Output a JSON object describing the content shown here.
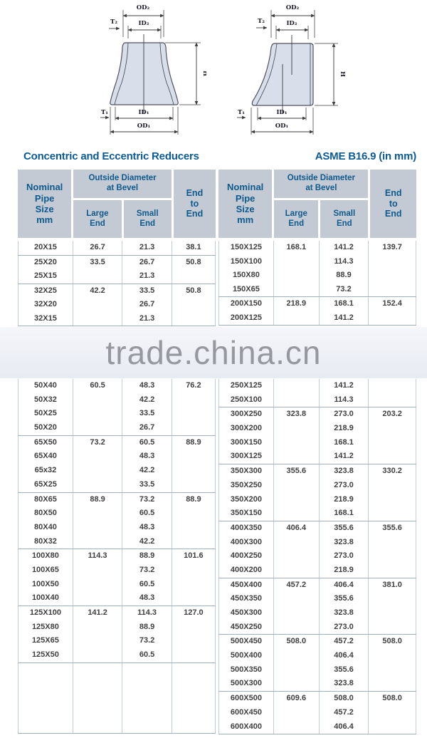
{
  "title": "Concentric and Eccentric Reducers",
  "standard": "ASME B16.9 (in mm)",
  "watermark": "trade.china.cn",
  "colors": {
    "accent_blue": "#0d5b94",
    "header_bg": "#c4cad3",
    "table_border": "#c3cdda",
    "diagram_fill": "#d8dfeb",
    "watermark_text": "#95989e"
  },
  "diagrams": {
    "labels": {
      "od2": "OD₂",
      "id2": "ID₂",
      "t2": "T₂",
      "h": "H",
      "t1": "T₁",
      "id1": "ID₁",
      "od1": "OD₁"
    }
  },
  "header": {
    "nominal": [
      "Nominal",
      "Pipe",
      "Size",
      "mm"
    ],
    "od_bevel": [
      "Outside Diameter",
      "at Bevel"
    ],
    "large": [
      "Large",
      "End"
    ],
    "small": [
      "Small",
      "End"
    ],
    "e2e": [
      "End",
      "to",
      "End"
    ]
  },
  "left_table": {
    "section1": [
      [
        [
          "20X15",
          "26.7",
          "21.3",
          "38.1"
        ]
      ],
      [
        [
          "25X20",
          "33.5",
          "26.7",
          "50.8"
        ],
        [
          "25X15",
          "",
          "21.3",
          ""
        ]
      ],
      [
        [
          "32X25",
          "42.2",
          "33.5",
          "50.8"
        ],
        [
          "32X20",
          "",
          "26.7",
          ""
        ],
        [
          "32X15",
          "",
          "21.3",
          ""
        ]
      ]
    ],
    "section2": [
      [
        [
          "50X40",
          "60.5",
          "48.3",
          "76.2"
        ],
        [
          "50X32",
          "",
          "42.2",
          ""
        ],
        [
          "50X25",
          "",
          "33.5",
          ""
        ],
        [
          "50X20",
          "",
          "26.7",
          ""
        ]
      ],
      [
        [
          "65X50",
          "73.2",
          "60.5",
          "88.9"
        ],
        [
          "65X40",
          "",
          "48.3",
          ""
        ],
        [
          "65x32",
          "",
          "42.2",
          ""
        ],
        [
          "65X25",
          "",
          "33.5",
          ""
        ]
      ],
      [
        [
          "80X65",
          "88.9",
          "73.2",
          "88.9"
        ],
        [
          "80X50",
          "",
          "60.5",
          ""
        ],
        [
          "80X40",
          "",
          "48.3",
          ""
        ],
        [
          "80X32",
          "",
          "42.2",
          ""
        ]
      ],
      [
        [
          "100X80",
          "114.3",
          "88.9",
          "101.6"
        ],
        [
          "100X65",
          "",
          "73.2",
          ""
        ],
        [
          "100X50",
          "",
          "60.5",
          ""
        ],
        [
          "100X40",
          "",
          "48.3",
          ""
        ]
      ],
      [
        [
          "125X100",
          "141.2",
          "114.3",
          "127.0"
        ],
        [
          "125X80",
          "",
          "88.9",
          ""
        ],
        [
          "125X65",
          "",
          "73.2",
          ""
        ],
        [
          "125X50",
          "",
          "60.5",
          ""
        ]
      ],
      [
        [
          "",
          "",
          "",
          ""
        ],
        [
          "",
          "",
          "",
          ""
        ],
        [
          "",
          "",
          "",
          ""
        ],
        [
          "",
          "",
          "",
          ""
        ],
        [
          "",
          "",
          "",
          ""
        ]
      ]
    ]
  },
  "right_table": {
    "section1": [
      [
        [
          "150X125",
          "168.1",
          "141.2",
          "139.7"
        ],
        [
          "150X100",
          "",
          "114.3",
          ""
        ],
        [
          "150X80",
          "",
          "88.9",
          ""
        ],
        [
          "150X65",
          "",
          "73.2",
          ""
        ]
      ],
      [
        [
          "200X150",
          "218.9",
          "168.1",
          "152.4"
        ],
        [
          "200X125",
          "",
          "141.2",
          ""
        ]
      ]
    ],
    "section2": [
      [
        [
          "250X125",
          "",
          "141.2",
          ""
        ],
        [
          "250X100",
          "",
          "114.3",
          ""
        ]
      ],
      [
        [
          "300X250",
          "323.8",
          "273.0",
          "203.2"
        ],
        [
          "300X200",
          "",
          "218.9",
          ""
        ],
        [
          "300X150",
          "",
          "168.1",
          ""
        ],
        [
          "300X125",
          "",
          "141.2",
          ""
        ]
      ],
      [
        [
          "350X300",
          "355.6",
          "323.8",
          "330.2"
        ],
        [
          "350X250",
          "",
          "273.0",
          ""
        ],
        [
          "350X200",
          "",
          "218.9",
          ""
        ],
        [
          "350X150",
          "",
          "168.1",
          ""
        ]
      ],
      [
        [
          "400X350",
          "406.4",
          "355.6",
          "355.6"
        ],
        [
          "400X300",
          "",
          "323.8",
          ""
        ],
        [
          "400X250",
          "",
          "273.0",
          ""
        ],
        [
          "400X200",
          "",
          "218.9",
          ""
        ]
      ],
      [
        [
          "450X400",
          "457.2",
          "406.4",
          "381.0"
        ],
        [
          "450X350",
          "",
          "355.6",
          ""
        ],
        [
          "450X300",
          "",
          "323.8",
          ""
        ],
        [
          "450X250",
          "",
          "273.0",
          ""
        ]
      ],
      [
        [
          "500X450",
          "508.0",
          "457.2",
          "508.0"
        ],
        [
          "500X400",
          "",
          "406.4",
          ""
        ],
        [
          "500X350",
          "",
          "355.6",
          ""
        ],
        [
          "500X300",
          "",
          "323.8",
          ""
        ]
      ],
      [
        [
          "600X500",
          "609.6",
          "508.0",
          "508.0"
        ],
        [
          "600X450",
          "",
          "457.2",
          ""
        ],
        [
          "600X400",
          "",
          "406.4",
          ""
        ]
      ]
    ]
  }
}
